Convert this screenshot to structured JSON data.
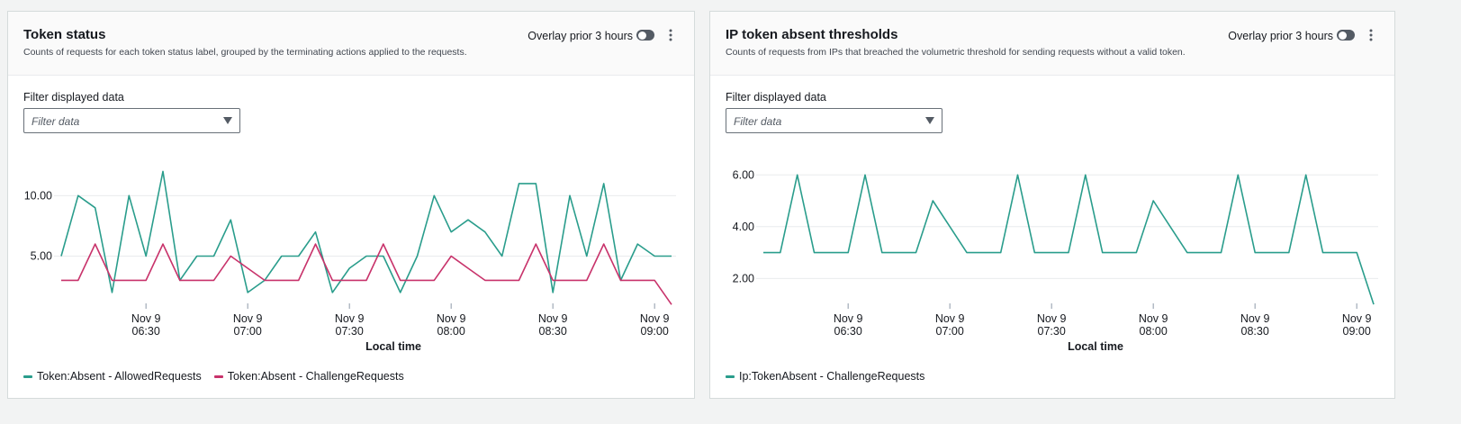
{
  "chart_data": [
    {
      "type": "line",
      "title": "Token status",
      "subtitle": "Counts of requests for each token status label, grouped by the terminating actions applied to the requests.",
      "overlay_label": "Overlay prior 3 hours",
      "filter_label": "Filter displayed data",
      "filter_placeholder": "Filter data",
      "x_label": "Local time",
      "categories": [
        null,
        null,
        null,
        null,
        null,
        [
          "Nov 9",
          "06:30"
        ],
        null,
        null,
        null,
        null,
        null,
        [
          "Nov 9",
          "07:00"
        ],
        null,
        null,
        null,
        null,
        null,
        [
          "Nov 9",
          "07:30"
        ],
        null,
        null,
        null,
        null,
        null,
        [
          "Nov 9",
          "08:00"
        ],
        null,
        null,
        null,
        null,
        null,
        [
          "Nov 9",
          "08:30"
        ],
        null,
        null,
        null,
        null,
        null,
        [
          "Nov 9",
          "09:00"
        ],
        null
      ],
      "ylim": [
        0.8,
        13
      ],
      "yticks": [
        {
          "value": 5,
          "label": "5.00"
        },
        {
          "value": 10,
          "label": "10.00"
        }
      ],
      "grid": true,
      "series": [
        {
          "name": "Token:Absent - AllowedRequests",
          "color": "#2a9d8c",
          "values": [
            5,
            10,
            9,
            2,
            10,
            5,
            12,
            3,
            5,
            5,
            8,
            2,
            3,
            5,
            5,
            7,
            2,
            4,
            5,
            5,
            2,
            5,
            10,
            7,
            8,
            7,
            5,
            11,
            11,
            2,
            10,
            5,
            11,
            3,
            6,
            5,
            5
          ]
        },
        {
          "name": "Token:Absent - ChallengeRequests",
          "color": "#c8336b",
          "values": [
            3,
            3,
            6,
            3,
            3,
            3,
            6,
            3,
            3,
            3,
            5,
            4,
            3,
            3,
            3,
            6,
            3,
            3,
            3,
            6,
            3,
            3,
            3,
            5,
            4,
            3,
            3,
            3,
            6,
            3,
            3,
            3,
            6,
            3,
            3,
            3,
            1
          ]
        }
      ]
    },
    {
      "type": "line",
      "title": "IP token absent thresholds",
      "subtitle": "Counts of requests from IPs that breached the volumetric threshold for sending requests without a valid token.",
      "overlay_label": "Overlay prior 3 hours",
      "filter_label": "Filter displayed data",
      "filter_placeholder": "Filter data",
      "x_label": "Local time",
      "categories": [
        null,
        null,
        null,
        null,
        null,
        [
          "Nov 9",
          "06:30"
        ],
        null,
        null,
        null,
        null,
        null,
        [
          "Nov 9",
          "07:00"
        ],
        null,
        null,
        null,
        null,
        null,
        [
          "Nov 9",
          "07:30"
        ],
        null,
        null,
        null,
        null,
        null,
        [
          "Nov 9",
          "08:00"
        ],
        null,
        null,
        null,
        null,
        null,
        [
          "Nov 9",
          "08:30"
        ],
        null,
        null,
        null,
        null,
        null,
        [
          "Nov 9",
          "09:00"
        ],
        null
      ],
      "ylim": [
        0.9,
        6.6
      ],
      "yticks": [
        {
          "value": 2,
          "label": "2.00"
        },
        {
          "value": 4,
          "label": "4.00"
        },
        {
          "value": 6,
          "label": "6.00"
        }
      ],
      "grid": true,
      "series": [
        {
          "name": "Ip:TokenAbsent - ChallengeRequests",
          "color": "#2a9d8c",
          "values": [
            3,
            3,
            6,
            3,
            3,
            3,
            6,
            3,
            3,
            3,
            5,
            4,
            3,
            3,
            3,
            6,
            3,
            3,
            3,
            6,
            3,
            3,
            3,
            5,
            4,
            3,
            3,
            3,
            6,
            3,
            3,
            3,
            6,
            3,
            3,
            3,
            1
          ]
        }
      ]
    }
  ]
}
